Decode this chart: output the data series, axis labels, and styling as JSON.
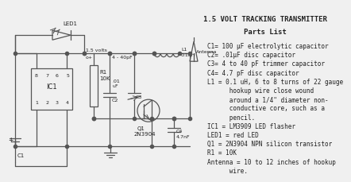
{
  "title": "1.5 VOLT TRACKING TRANSMITTER",
  "parts_list_title": "Parts List",
  "parts_list": [
    "C1= 100 µF electrolytic capacitor",
    "C2= .01µF disc capacitor",
    "C3= 4 to 40 pF trimmer capacitor",
    "C4= 4.7 pF disc capacitor",
    "L1 = 0.1 uH, 6 to 8 turns of 22 gauge",
    "      hookup wire close wound",
    "      around a 1/4\" diameter non-",
    "      conductive core, such as a",
    "      pencil.",
    "IC1 = LM3909 LED flasher",
    "LED1 = red LED",
    "Q1 = 2N3904 NPN silicon transistor",
    "R1 = 10K",
    "Antenna = 10 to 12 inches of hookup",
    "      wire."
  ],
  "bg_color": "#f0f0f0",
  "text_color": "#222222",
  "line_color": "#555555",
  "font_size_title": 6.5,
  "font_size_parts_title": 6.5,
  "font_size_parts": 5.5
}
